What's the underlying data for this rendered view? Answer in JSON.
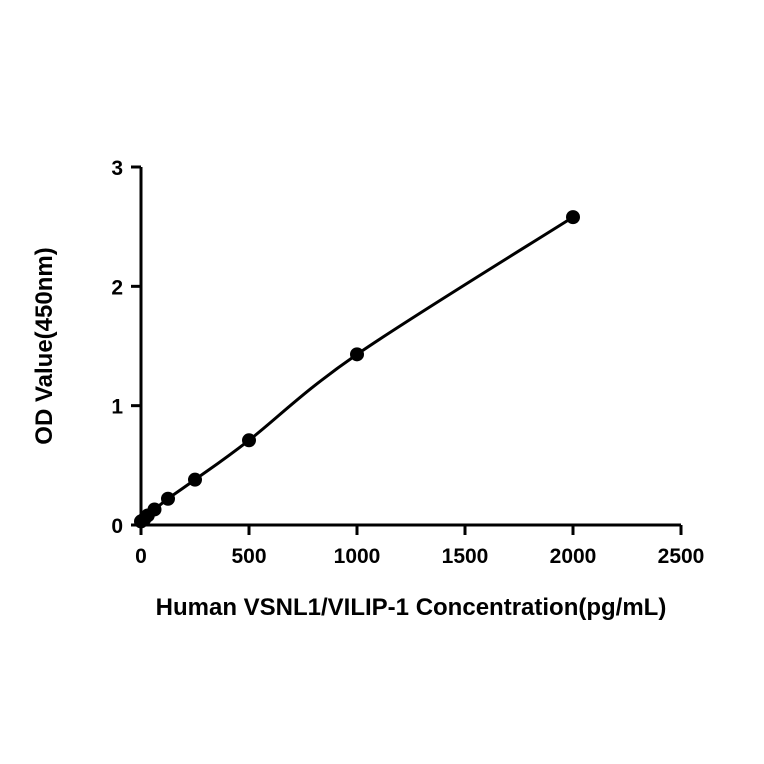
{
  "chart_data": {
    "type": "scatter",
    "xlabel": "Human VSNL1/VILIP-1 Concentration(pg/mL)",
    "ylabel": "OD Value(450nm)",
    "xlim": [
      0,
      2500
    ],
    "ylim": [
      0,
      3
    ],
    "x_ticks": [
      "0",
      "500",
      "1000",
      "1500",
      "2000",
      "2500"
    ],
    "y_ticks": [
      "0",
      "1",
      "2",
      "3"
    ],
    "grid": false,
    "legend": "none",
    "fit_curve": true,
    "series": [
      {
        "x": [
          0,
          15.6,
          31.25,
          62.5,
          125,
          250,
          500,
          1000,
          2000
        ],
        "y": [
          0.03,
          0.05,
          0.08,
          0.13,
          0.22,
          0.38,
          0.71,
          1.43,
          2.58
        ]
      }
    ],
    "colors": {
      "marker": "#000000",
      "line": "#000000"
    }
  }
}
